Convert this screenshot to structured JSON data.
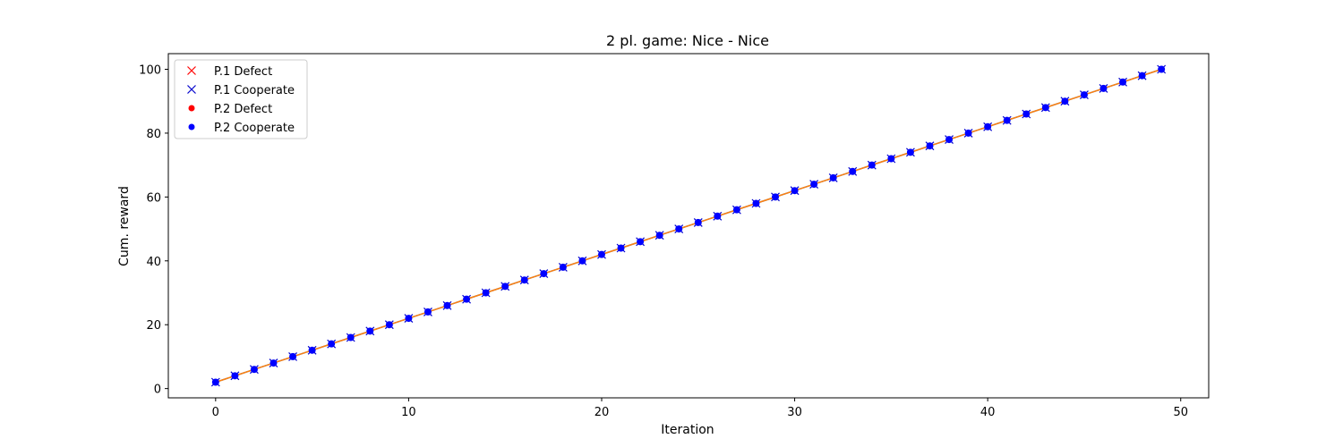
{
  "chart_data": {
    "type": "line",
    "title": "2 pl. game: Nice - Nice",
    "xlabel": "Iteration",
    "ylabel": "Cum. reward",
    "xlim": [
      -2.45,
      51.45
    ],
    "ylim": [
      -2.9,
      104.9
    ],
    "xticks": [
      0,
      10,
      20,
      30,
      40,
      50
    ],
    "yticks": [
      0,
      20,
      40,
      60,
      80,
      100
    ],
    "grid": false,
    "legend_position": "top-left",
    "x": [
      0,
      1,
      2,
      3,
      4,
      5,
      6,
      7,
      8,
      9,
      10,
      11,
      12,
      13,
      14,
      15,
      16,
      17,
      18,
      19,
      20,
      21,
      22,
      23,
      24,
      25,
      26,
      27,
      28,
      29,
      30,
      31,
      32,
      33,
      34,
      35,
      36,
      37,
      38,
      39,
      40,
      41,
      42,
      43,
      44,
      45,
      46,
      47,
      48,
      49
    ],
    "series": [
      {
        "line_color": "#1f77b4",
        "values": [
          2,
          4,
          6,
          8,
          10,
          12,
          14,
          16,
          18,
          20,
          22,
          24,
          26,
          28,
          30,
          32,
          34,
          36,
          38,
          40,
          42,
          44,
          46,
          48,
          50,
          52,
          54,
          56,
          58,
          60,
          62,
          64,
          66,
          68,
          70,
          72,
          74,
          76,
          78,
          80,
          82,
          84,
          86,
          88,
          90,
          92,
          94,
          96,
          98,
          100
        ]
      },
      {
        "line_color": "#ff7f0e",
        "values": [
          2,
          4,
          6,
          8,
          10,
          12,
          14,
          16,
          18,
          20,
          22,
          24,
          26,
          28,
          30,
          32,
          34,
          36,
          38,
          40,
          42,
          44,
          46,
          48,
          50,
          52,
          54,
          56,
          58,
          60,
          62,
          64,
          66,
          68,
          70,
          72,
          74,
          76,
          78,
          80,
          82,
          84,
          86,
          88,
          90,
          92,
          94,
          96,
          98,
          100
        ]
      }
    ],
    "markers": [
      {
        "name": "P.1 Defect",
        "marker": "x",
        "color": "#ff0000",
        "x": [],
        "values": []
      },
      {
        "name": "P.1 Cooperate",
        "marker": "x",
        "color": "#0000cc",
        "x": [
          0,
          1,
          2,
          3,
          4,
          5,
          6,
          7,
          8,
          9,
          10,
          11,
          12,
          13,
          14,
          15,
          16,
          17,
          18,
          19,
          20,
          21,
          22,
          23,
          24,
          25,
          26,
          27,
          28,
          29,
          30,
          31,
          32,
          33,
          34,
          35,
          36,
          37,
          38,
          39,
          40,
          41,
          42,
          43,
          44,
          45,
          46,
          47,
          48,
          49
        ],
        "values": [
          2,
          4,
          6,
          8,
          10,
          12,
          14,
          16,
          18,
          20,
          22,
          24,
          26,
          28,
          30,
          32,
          34,
          36,
          38,
          40,
          42,
          44,
          46,
          48,
          50,
          52,
          54,
          56,
          58,
          60,
          62,
          64,
          66,
          68,
          70,
          72,
          74,
          76,
          78,
          80,
          82,
          84,
          86,
          88,
          90,
          92,
          94,
          96,
          98,
          100
        ]
      },
      {
        "name": "P.2 Defect",
        "marker": "dot",
        "color": "#ff0000",
        "x": [],
        "values": []
      },
      {
        "name": "P.2 Cooperate",
        "marker": "dot",
        "color": "#0000ff",
        "x": [
          0,
          1,
          2,
          3,
          4,
          5,
          6,
          7,
          8,
          9,
          10,
          11,
          12,
          13,
          14,
          15,
          16,
          17,
          18,
          19,
          20,
          21,
          22,
          23,
          24,
          25,
          26,
          27,
          28,
          29,
          30,
          31,
          32,
          33,
          34,
          35,
          36,
          37,
          38,
          39,
          40,
          41,
          42,
          43,
          44,
          45,
          46,
          47,
          48,
          49
        ],
        "values": [
          2,
          4,
          6,
          8,
          10,
          12,
          14,
          16,
          18,
          20,
          22,
          24,
          26,
          28,
          30,
          32,
          34,
          36,
          38,
          40,
          42,
          44,
          46,
          48,
          50,
          52,
          54,
          56,
          58,
          60,
          62,
          64,
          66,
          68,
          70,
          72,
          74,
          76,
          78,
          80,
          82,
          84,
          86,
          88,
          90,
          92,
          94,
          96,
          98,
          100
        ]
      }
    ]
  }
}
